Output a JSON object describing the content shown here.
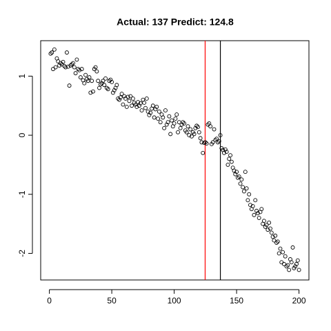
{
  "chart_data": {
    "type": "scatter",
    "title": "Actual: 137 Predict: 124.8",
    "x": [
      1,
      2,
      3,
      4,
      5,
      6,
      7,
      8,
      9,
      10,
      11,
      12,
      13,
      14,
      15,
      16,
      17,
      18,
      19,
      20,
      21,
      22,
      23,
      24,
      25,
      26,
      27,
      28,
      29,
      30,
      31,
      32,
      33,
      34,
      35,
      36,
      37,
      38,
      39,
      40,
      41,
      42,
      43,
      44,
      45,
      46,
      47,
      48,
      49,
      50,
      51,
      52,
      53,
      54,
      55,
      56,
      57,
      58,
      59,
      60,
      61,
      62,
      63,
      64,
      65,
      66,
      67,
      68,
      69,
      70,
      71,
      72,
      73,
      74,
      75,
      76,
      77,
      78,
      79,
      80,
      81,
      82,
      83,
      84,
      85,
      86,
      87,
      88,
      89,
      90,
      91,
      92,
      93,
      94,
      95,
      96,
      97,
      98,
      99,
      100,
      101,
      102,
      103,
      104,
      105,
      106,
      107,
      108,
      109,
      110,
      111,
      112,
      113,
      114,
      115,
      116,
      117,
      118,
      119,
      120,
      121,
      122,
      123,
      124,
      125,
      126,
      127,
      128,
      129,
      130,
      131,
      132,
      133,
      134,
      135,
      136,
      137,
      138,
      139,
      140,
      141,
      142,
      143,
      144,
      145,
      146,
      147,
      148,
      149,
      150,
      151,
      152,
      153,
      154,
      155,
      156,
      157,
      158,
      159,
      160,
      161,
      162,
      163,
      164,
      165,
      166,
      167,
      168,
      169,
      170,
      171,
      172,
      173,
      174,
      175,
      176,
      177,
      178,
      179,
      180,
      181,
      182,
      183,
      184,
      185,
      186,
      187,
      188,
      189,
      190,
      191,
      192,
      193,
      194,
      195,
      196,
      197,
      198,
      199,
      200
    ],
    "values": [
      1.38,
      1.4,
      1.12,
      1.45,
      1.15,
      1.3,
      1.25,
      1.18,
      1.22,
      1.2,
      1.24,
      1.17,
      1.15,
      1.4,
      1.16,
      0.84,
      1.18,
      1.2,
      1.22,
      1.15,
      1.05,
      1.28,
      1.12,
      1.1,
      0.98,
      1.12,
      0.93,
      0.88,
      1.02,
      0.95,
      0.92,
      0.98,
      0.72,
      0.92,
      0.74,
      1.12,
      1.15,
      1.08,
      0.92,
      0.8,
      0.86,
      0.88,
      0.92,
      0.85,
      0.96,
      0.8,
      0.78,
      0.92,
      0.94,
      0.9,
      0.72,
      0.76,
      0.8,
      0.85,
      0.62,
      0.6,
      0.64,
      0.7,
      0.52,
      0.66,
      0.62,
      0.48,
      0.65,
      0.58,
      0.66,
      0.5,
      0.62,
      0.55,
      0.52,
      0.48,
      0.56,
      0.5,
      0.54,
      0.42,
      0.6,
      0.55,
      0.46,
      0.62,
      0.4,
      0.34,
      0.38,
      0.45,
      0.5,
      0.3,
      0.44,
      0.48,
      0.28,
      0.4,
      0.22,
      0.35,
      0.3,
      0.12,
      0.42,
      0.18,
      0.22,
      0.32,
      0.02,
      0.25,
      0.15,
      0.2,
      0.28,
      0.35,
      0.05,
      0.22,
      0.12,
      0.18,
      0.22,
      0.2,
      0.08,
      0.05,
      0.15,
      0.0,
      0.1,
      -0.02,
      0.05,
      0.02,
      0.12,
      0.16,
      0.14,
      0.05,
      -0.05,
      -0.12,
      -0.3,
      -0.13,
      -0.12,
      -0.14,
      0.18,
      0.2,
      0.15,
      -0.15,
      -0.12,
      0.1,
      -0.08,
      -0.06,
      -0.12,
      -0.1,
      0.0,
      -0.22,
      -0.25,
      -0.3,
      -0.24,
      -0.28,
      -0.5,
      -0.4,
      -0.34,
      -0.45,
      -0.55,
      -0.6,
      -0.66,
      -0.62,
      -0.72,
      -0.7,
      -0.82,
      -0.75,
      -0.88,
      -0.95,
      -0.62,
      -0.9,
      -1.1,
      -1.0,
      -1.18,
      -1.25,
      -1.2,
      -1.35,
      -1.1,
      -1.28,
      -1.32,
      -1.4,
      -1.3,
      -1.25,
      -1.5,
      -1.45,
      -1.55,
      -1.52,
      -1.6,
      -1.48,
      -1.58,
      -1.65,
      -1.72,
      -1.78,
      -1.7,
      -1.82,
      -1.8,
      -2.0,
      -1.92,
      -2.15,
      -1.98,
      -2.18,
      -2.05,
      -2.22,
      -2.2,
      -2.28,
      -2.1,
      -2.15,
      -1.9,
      -2.25,
      -2.22,
      -2.18,
      -2.12,
      -2.28
    ],
    "color": "#000000",
    "xlim": [
      -6.96,
      207.96
    ],
    "ylim": [
      -2.45,
      1.6
    ],
    "xticks": [
      0,
      50,
      100,
      150,
      200
    ],
    "yticks": [
      -2,
      -1,
      0,
      1
    ],
    "vlines": [
      {
        "x": 137,
        "color": "#000000"
      },
      {
        "x": 124.8,
        "color": "#ff0000"
      }
    ]
  }
}
